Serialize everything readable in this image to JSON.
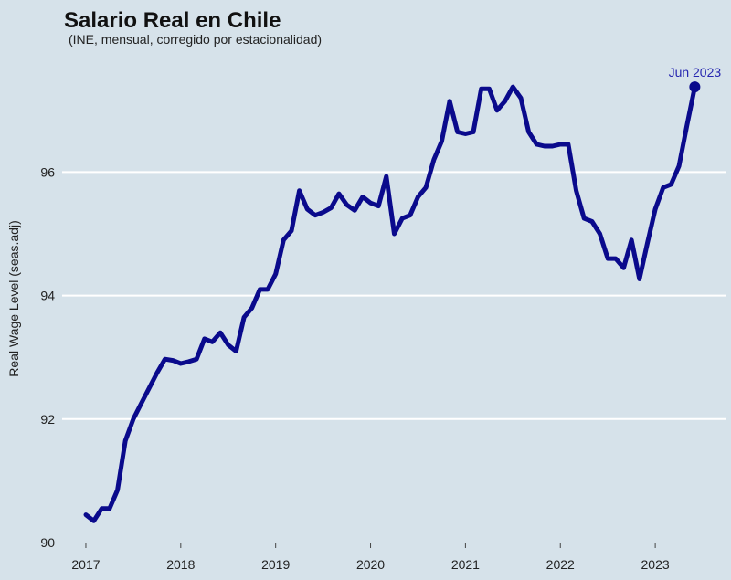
{
  "chart_data": {
    "type": "line",
    "title": "Salario Real en Chile",
    "subtitle": "(INE, mensual, corregido por estacionalidad)",
    "xlabel": "",
    "ylabel": "Real Wage Level (seas.adj)",
    "x_ticks": [
      "2017",
      "2018",
      "2019",
      "2020",
      "2021",
      "2022",
      "2023"
    ],
    "y_ticks": [
      "90",
      "92",
      "94",
      "96"
    ],
    "xlim": [
      2016.75,
      2023.75
    ],
    "ylim": [
      90,
      97.9
    ],
    "grid": true,
    "legend": "none",
    "series": [
      {
        "color": "#0a0a8c",
        "points": [
          [
            "2017-01",
            90.45
          ],
          [
            "2017-02",
            90.35
          ],
          [
            "2017-03",
            90.55
          ],
          [
            "2017-04",
            90.55
          ],
          [
            "2017-05",
            90.85
          ],
          [
            "2017-06",
            91.65
          ],
          [
            "2017-07",
            92.0
          ],
          [
            "2017-08",
            92.25
          ],
          [
            "2017-09",
            92.5
          ],
          [
            "2017-10",
            92.75
          ],
          [
            "2017-11",
            92.97
          ],
          [
            "2017-12",
            92.95
          ],
          [
            "2018-01",
            92.9
          ],
          [
            "2018-02",
            92.93
          ],
          [
            "2018-03",
            92.97
          ],
          [
            "2018-04",
            93.3
          ],
          [
            "2018-05",
            93.25
          ],
          [
            "2018-06",
            93.4
          ],
          [
            "2018-07",
            93.2
          ],
          [
            "2018-08",
            93.1
          ],
          [
            "2018-09",
            93.65
          ],
          [
            "2018-10",
            93.8
          ],
          [
            "2018-11",
            94.1
          ],
          [
            "2018-12",
            94.1
          ],
          [
            "2019-01",
            94.35
          ],
          [
            "2019-02",
            94.9
          ],
          [
            "2019-03",
            95.05
          ],
          [
            "2019-04",
            95.7
          ],
          [
            "2019-05",
            95.4
          ],
          [
            "2019-06",
            95.3
          ],
          [
            "2019-07",
            95.35
          ],
          [
            "2019-08",
            95.42
          ],
          [
            "2019-09",
            95.65
          ],
          [
            "2019-10",
            95.47
          ],
          [
            "2019-11",
            95.38
          ],
          [
            "2019-12",
            95.6
          ],
          [
            "2020-01",
            95.5
          ],
          [
            "2020-02",
            95.45
          ],
          [
            "2020-03",
            95.93
          ],
          [
            "2020-04",
            95.0
          ],
          [
            "2020-05",
            95.25
          ],
          [
            "2020-06",
            95.3
          ],
          [
            "2020-07",
            95.6
          ],
          [
            "2020-08",
            95.75
          ],
          [
            "2020-09",
            96.2
          ],
          [
            "2020-10",
            96.5
          ],
          [
            "2020-11",
            97.15
          ],
          [
            "2020-12",
            96.65
          ],
          [
            "2021-01",
            96.62
          ],
          [
            "2021-02",
            96.65
          ],
          [
            "2021-03",
            97.35
          ],
          [
            "2021-04",
            97.35
          ],
          [
            "2021-05",
            97.0
          ],
          [
            "2021-06",
            97.15
          ],
          [
            "2021-07",
            97.38
          ],
          [
            "2021-08",
            97.2
          ],
          [
            "2021-09",
            96.65
          ],
          [
            "2021-10",
            96.45
          ],
          [
            "2021-11",
            96.42
          ],
          [
            "2021-12",
            96.42
          ],
          [
            "2022-01",
            96.45
          ],
          [
            "2022-02",
            96.45
          ],
          [
            "2022-03",
            95.7
          ],
          [
            "2022-04",
            95.25
          ],
          [
            "2022-05",
            95.2
          ],
          [
            "2022-06",
            95.0
          ],
          [
            "2022-07",
            94.6
          ],
          [
            "2022-08",
            94.6
          ],
          [
            "2022-09",
            94.45
          ],
          [
            "2022-10",
            94.9
          ],
          [
            "2022-11",
            94.27
          ],
          [
            "2022-12",
            94.85
          ],
          [
            "2023-01",
            95.4
          ],
          [
            "2023-02",
            95.75
          ],
          [
            "2023-03",
            95.8
          ],
          [
            "2023-04",
            96.1
          ],
          [
            "2023-05",
            96.75
          ],
          [
            "2023-06",
            97.38
          ]
        ]
      }
    ],
    "annotations": [
      {
        "text": "Jun 2023",
        "x": "2023-06",
        "y": 97.38,
        "color": "#2626b0"
      }
    ]
  }
}
